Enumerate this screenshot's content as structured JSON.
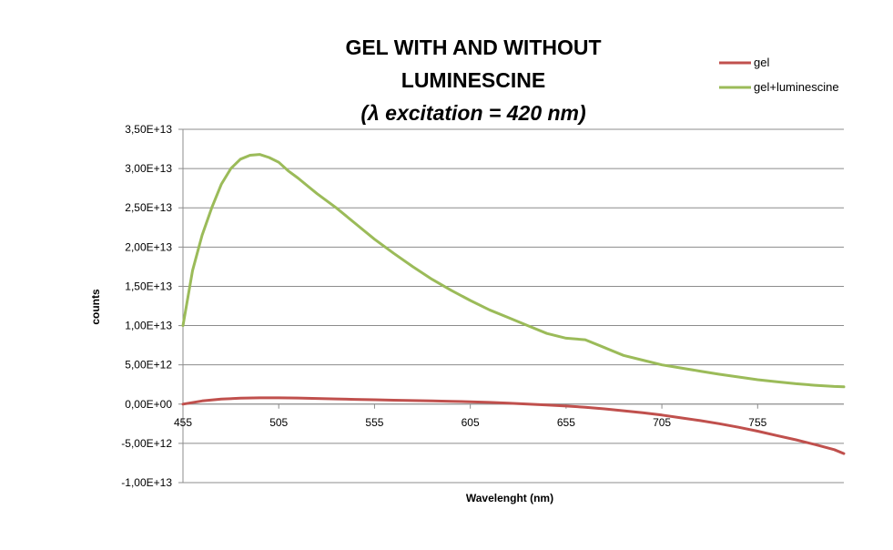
{
  "chart_data": {
    "type": "line",
    "title": "GEL WITH AND WITHOUT LUMINESCINE",
    "title_lines": [
      "GEL WITH AND WITHOUT",
      "LUMINESCINE"
    ],
    "subtitle": "(λ excitation = 420 nm)",
    "xlabel": "Wavelenght (nm)",
    "ylabel": "counts",
    "xlim": [
      455,
      800
    ],
    "ylim": [
      -10000000000000.0,
      35000000000000.0
    ],
    "x_ticks": [
      455,
      505,
      555,
      605,
      655,
      705,
      755
    ],
    "x_tick_labels": [
      "455",
      "505",
      "555",
      "605",
      "655",
      "705",
      "755"
    ],
    "y_ticks": [
      -10000000000000.0,
      -5000000000000.0,
      0,
      5000000000000.0,
      10000000000000.0,
      15000000000000.0,
      20000000000000.0,
      25000000000000.0,
      30000000000000.0,
      35000000000000.0
    ],
    "y_tick_labels": [
      "-1,00E+13",
      "-5,00E+12",
      "0,00E+00",
      "5,00E+12",
      "1,00E+13",
      "1,50E+13",
      "2,00E+13",
      "2,50E+13",
      "3,00E+13",
      "3,50E+13"
    ],
    "grid": "horizontal",
    "legend_position": "top-right",
    "series": [
      {
        "name": "gel",
        "color": "#c0504d",
        "x": [
          455,
          465,
          475,
          485,
          495,
          505,
          515,
          525,
          535,
          545,
          555,
          565,
          575,
          585,
          595,
          605,
          615,
          625,
          635,
          645,
          655,
          665,
          675,
          685,
          695,
          705,
          715,
          725,
          735,
          745,
          755,
          765,
          775,
          785,
          795,
          800
        ],
        "y": [
          0,
          400000000000.0,
          650000000000.0,
          750000000000.0,
          800000000000.0,
          800000000000.0,
          780000000000.0,
          720000000000.0,
          660000000000.0,
          600000000000.0,
          550000000000.0,
          500000000000.0,
          450000000000.0,
          400000000000.0,
          350000000000.0,
          300000000000.0,
          220000000000.0,
          120000000000.0,
          0,
          -120000000000.0,
          -250000000000.0,
          -400000000000.0,
          -600000000000.0,
          -850000000000.0,
          -1100000000000.0,
          -1400000000000.0,
          -1750000000000.0,
          -2100000000000.0,
          -2500000000000.0,
          -2950000000000.0,
          -3450000000000.0,
          -4000000000000.0,
          -4550000000000.0,
          -5150000000000.0,
          -5800000000000.0,
          -6300000000000.0
        ]
      },
      {
        "name": "gel+luminescine",
        "color": "#9bbb59",
        "x": [
          455,
          460,
          465,
          470,
          475,
          480,
          485,
          490,
          495,
          500,
          505,
          510,
          515,
          520,
          525,
          535,
          545,
          555,
          565,
          575,
          585,
          595,
          605,
          615,
          625,
          635,
          645,
          655,
          665,
          675,
          685,
          695,
          705,
          715,
          725,
          735,
          745,
          755,
          765,
          775,
          785,
          795,
          800
        ],
        "y": [
          10000000000000.0,
          17000000000000.0,
          21500000000000.0,
          25000000000000.0,
          28000000000000.0,
          30000000000000.0,
          31200000000000.0,
          31700000000000.0,
          31800000000000.0,
          31400000000000.0,
          30800000000000.0,
          29700000000000.0,
          28800000000000.0,
          27800000000000.0,
          26800000000000.0,
          25000000000000.0,
          23000000000000.0,
          21000000000000.0,
          19200000000000.0,
          17500000000000.0,
          15900000000000.0,
          14500000000000.0,
          13200000000000.0,
          12000000000000.0,
          11000000000000.0,
          10000000000000.0,
          9000000000000.0,
          8400000000000.0,
          8200000000000.0,
          7200000000000.0,
          6200000000000.0,
          5600000000000.0,
          5000000000000.0,
          4600000000000.0,
          4200000000000.0,
          3800000000000.0,
          3450000000000.0,
          3100000000000.0,
          2850000000000.0,
          2600000000000.0,
          2400000000000.0,
          2250000000000.0,
          2200000000000.0
        ]
      }
    ]
  }
}
